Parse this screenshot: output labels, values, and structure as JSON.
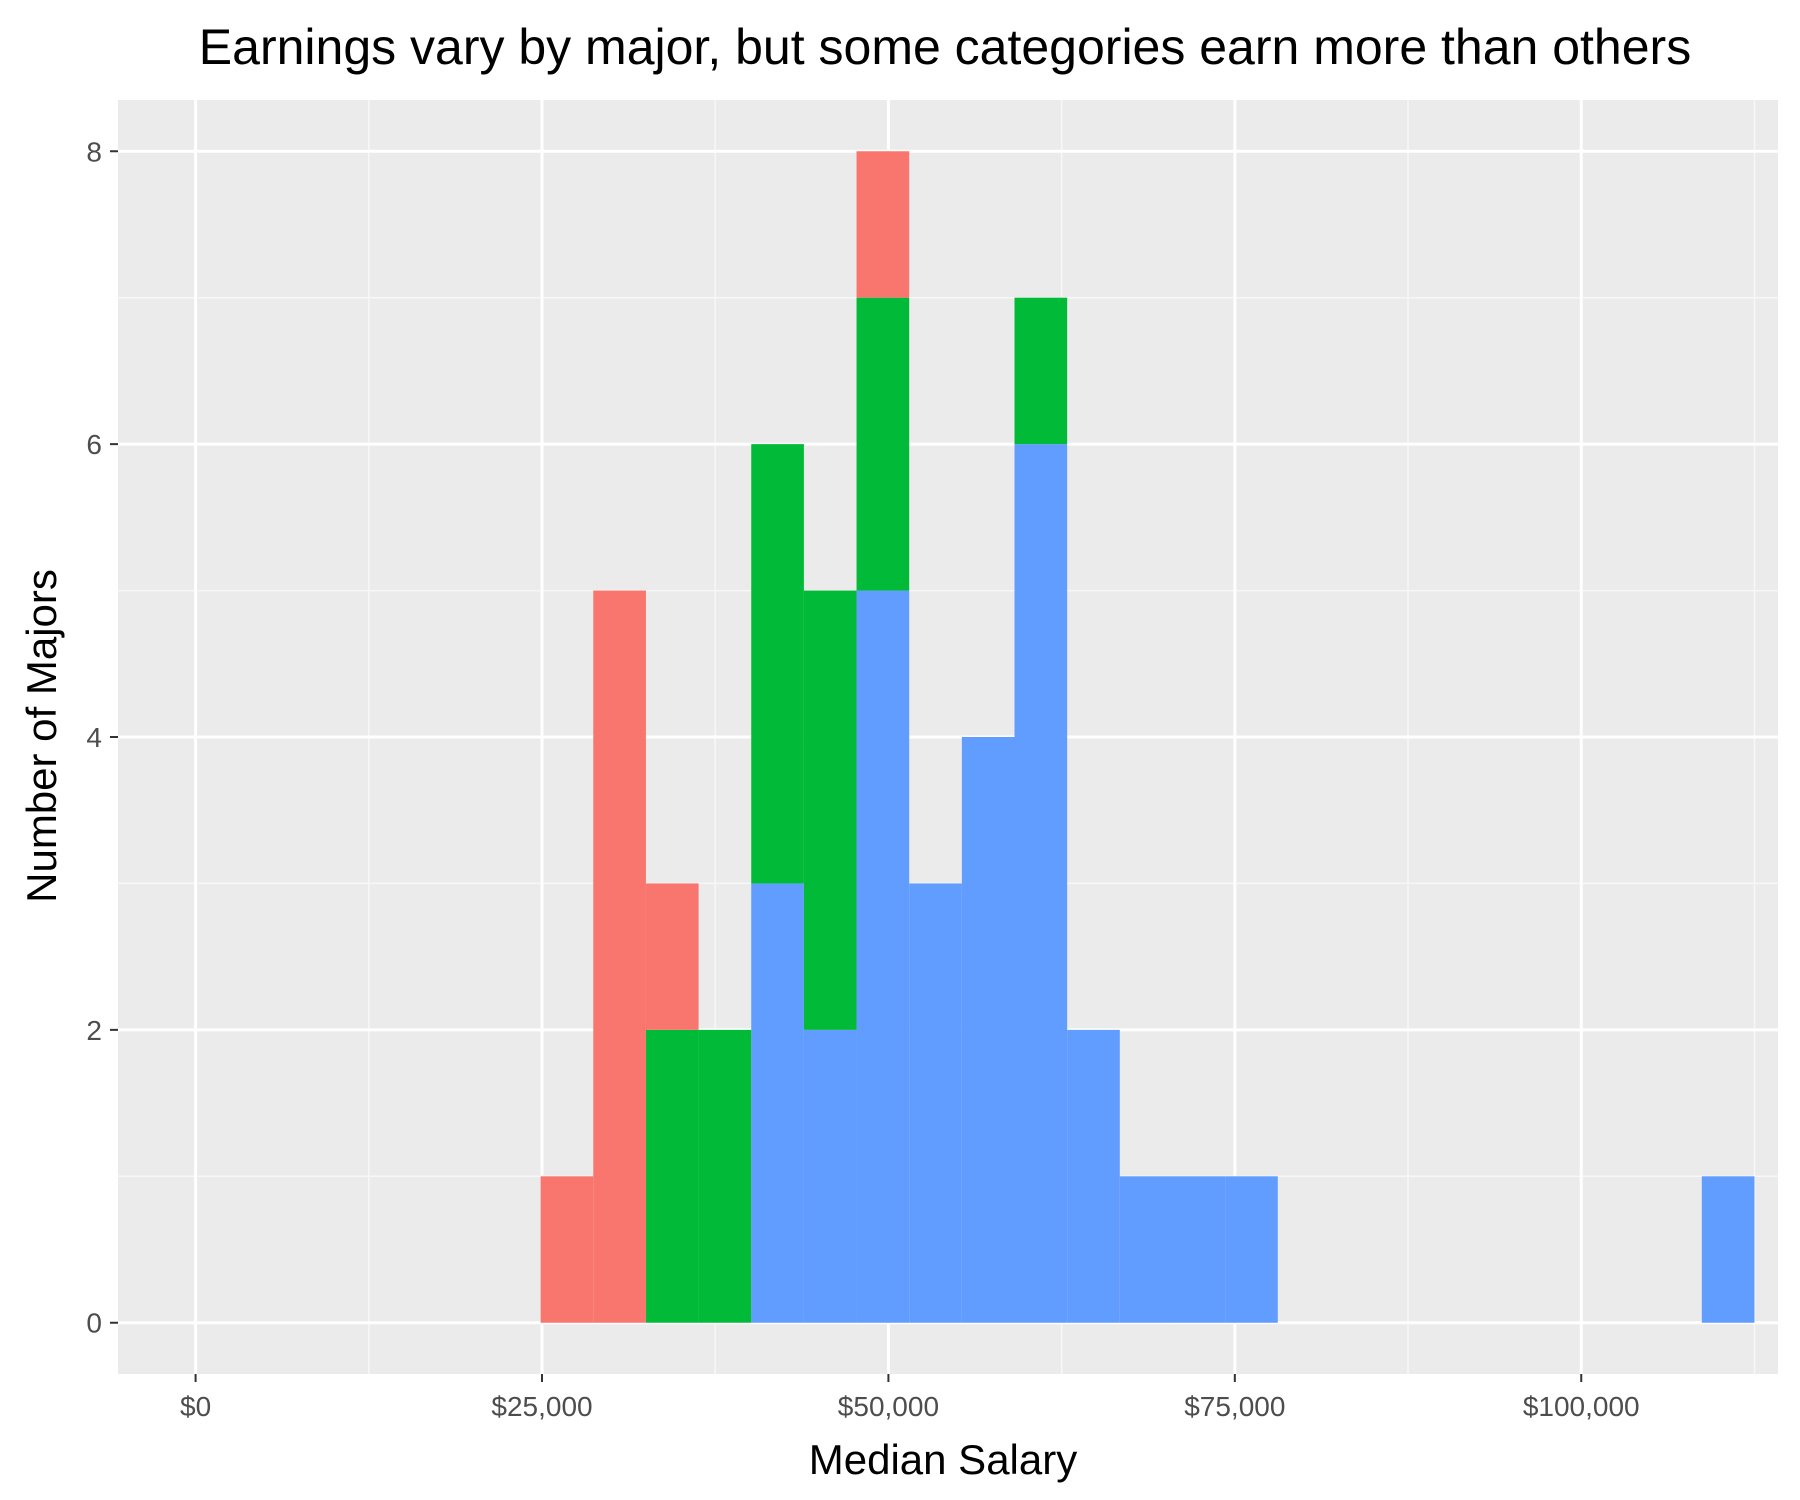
{
  "chart_data": {
    "type": "bar",
    "subtype": "stacked-histogram",
    "title": "Earnings vary by major, but some categories earn more than others",
    "xlabel": "Median Salary",
    "ylabel": "Number of Majors",
    "xlim": [
      -5600,
      114200
    ],
    "ylim": [
      -0.35,
      8.35
    ],
    "x_ticks": [
      {
        "value": 0,
        "label": "$0"
      },
      {
        "value": 25000,
        "label": "$25,000"
      },
      {
        "value": 50000,
        "label": "$50,000"
      },
      {
        "value": 75000,
        "label": "$75,000"
      },
      {
        "value": 100000,
        "label": "$100,000"
      }
    ],
    "y_ticks": [
      {
        "value": 0,
        "label": "0"
      },
      {
        "value": 2,
        "label": "2"
      },
      {
        "value": 4,
        "label": "4"
      },
      {
        "value": 6,
        "label": "6"
      },
      {
        "value": 8,
        "label": "8"
      }
    ],
    "grid": true,
    "legend": "none",
    "bins": [
      {
        "x0": 24900,
        "x1": 28700
      },
      {
        "x0": 28700,
        "x1": 32500
      },
      {
        "x0": 32500,
        "x1": 36300
      },
      {
        "x0": 36300,
        "x1": 40100
      },
      {
        "x0": 40100,
        "x1": 43900
      },
      {
        "x0": 43900,
        "x1": 47700
      },
      {
        "x0": 47700,
        "x1": 51500
      },
      {
        "x0": 51500,
        "x1": 55300
      },
      {
        "x0": 55300,
        "x1": 59100
      },
      {
        "x0": 59100,
        "x1": 62900
      },
      {
        "x0": 62900,
        "x1": 66700
      },
      {
        "x0": 66700,
        "x1": 70500
      },
      {
        "x0": 70500,
        "x1": 74300
      },
      {
        "x0": 74300,
        "x1": 78100
      },
      {
        "x0": 108700,
        "x1": 112500
      }
    ],
    "series": [
      {
        "color": "#619cff",
        "values": [
          0,
          0,
          0,
          0,
          3,
          2,
          5,
          3,
          4,
          6,
          2,
          1,
          1,
          1,
          1
        ]
      },
      {
        "color": "#00ba38",
        "values": [
          0,
          0,
          2,
          2,
          3,
          3,
          2,
          0,
          0,
          1,
          0,
          0,
          0,
          0,
          0
        ]
      },
      {
        "color": "#f8766d",
        "values": [
          1,
          5,
          1,
          0,
          0,
          0,
          1,
          0,
          0,
          0,
          0,
          0,
          0,
          0,
          0
        ]
      }
    ],
    "colors": {
      "panel_background": "#ebebeb",
      "grid_major": "#ffffff",
      "grid_minor": "#f7f7f7",
      "tick_mark": "#333333"
    }
  }
}
